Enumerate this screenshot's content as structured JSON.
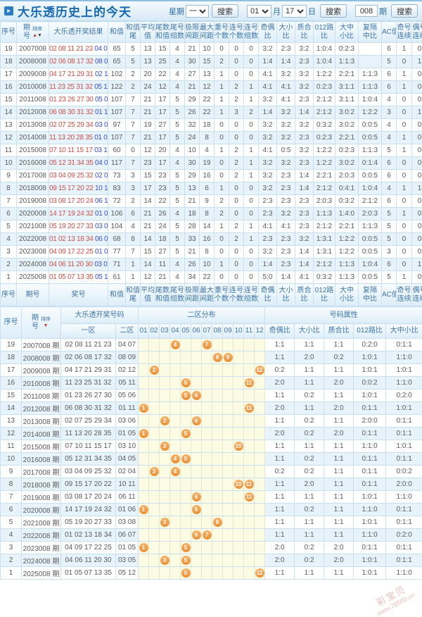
{
  "header": {
    "title_icon": "▸",
    "title": "大乐透历史上的今天",
    "week_label": "星期",
    "week_value": "一",
    "search_label": "搜索",
    "month_value": "01",
    "month_label": "月",
    "day_value": "17",
    "day_label": "日",
    "issue_value": "008",
    "issue_label": "期"
  },
  "sort": {
    "label": "排序",
    "up": "▲",
    "down": "▼"
  },
  "table1": {
    "columns": [
      [
        "序号"
      ],
      [
        "期",
        "号"
      ],
      [
        "大乐透开奖结果"
      ],
      [
        "和值"
      ],
      [
        "和值",
        "尾"
      ],
      [
        "平均",
        "值"
      ],
      [
        "尾数",
        "和值"
      ],
      [
        "尾号",
        "组数"
      ],
      [
        "极限",
        "间距"
      ],
      [
        "最大",
        "间距"
      ],
      [
        "重号",
        "个数"
      ],
      [
        "连号",
        "个数"
      ],
      [
        "连号",
        "组数"
      ],
      [
        "奇偶",
        "比"
      ],
      [
        "大小",
        "比"
      ],
      [
        "质合",
        "比"
      ],
      [
        "012路",
        "比"
      ],
      [
        "大中",
        "小比"
      ],
      [
        "复隔",
        "中比"
      ],
      [
        "AC值"
      ],
      [
        "奇号",
        "连续"
      ],
      [
        "偶号",
        "连续"
      ]
    ],
    "footer_columns": [
      [
        "序号"
      ],
      [
        "期号"
      ],
      [
        "奖号"
      ],
      [
        "和值"
      ],
      [
        "和值",
        "尾"
      ],
      [
        "平均",
        "值"
      ],
      [
        "尾数",
        "和值"
      ],
      [
        "尾号",
        "组数"
      ],
      [
        "极限",
        "间距"
      ],
      [
        "最大",
        "间距"
      ],
      [
        "重号",
        "个数"
      ],
      [
        "连号",
        "个数"
      ],
      [
        "连号",
        "组数"
      ],
      [
        "奇偶",
        "比"
      ],
      [
        "大小",
        "比"
      ],
      [
        "质合",
        "比"
      ],
      [
        "012路",
        "比"
      ],
      [
        "大中",
        "小比"
      ],
      [
        "复隔",
        "中比"
      ],
      [
        "AC值"
      ],
      [
        "奇号",
        "连续"
      ],
      [
        "偶号",
        "连续"
      ]
    ],
    "rows": [
      {
        "seq": "19",
        "issue": "2007008",
        "front": "02 08 11 21 23",
        "back": "04 07",
        "vals": [
          "65",
          "5",
          "13",
          "15",
          "4",
          "21",
          "10",
          "0",
          "0",
          "0",
          "3:2",
          "2:3",
          "3:2",
          "1:0:4",
          "0:2:3",
          "",
          "6",
          "1",
          "0"
        ]
      },
      {
        "seq": "18",
        "issue": "2008008",
        "front": "02 06 08 17 32",
        "back": "08 09",
        "vals": [
          "65",
          "5",
          "13",
          "25",
          "4",
          "30",
          "15",
          "2",
          "0",
          "0",
          "1:4",
          "1:4",
          "2:3",
          "1:0:4",
          "1:1:3",
          "",
          "5",
          "0",
          "1"
        ]
      },
      {
        "seq": "17",
        "issue": "2009008",
        "front": "04 17 21 29 31",
        "back": "02 12",
        "vals": [
          "102",
          "2",
          "20",
          "22",
          "4",
          "27",
          "13",
          "1",
          "0",
          "0",
          "4:1",
          "3:2",
          "3:2",
          "1:2:2",
          "2:2:1",
          "1:1:3",
          "6",
          "1",
          "0"
        ]
      },
      {
        "seq": "16",
        "issue": "2010008",
        "front": "11 23 25 31 32",
        "back": "05 11",
        "vals": [
          "122",
          "2",
          "24",
          "12",
          "4",
          "21",
          "12",
          "1",
          "2",
          "1",
          "4:1",
          "4:1",
          "3:2",
          "0:2:3",
          "3:1:1",
          "1:1:3",
          "6",
          "1",
          "0"
        ]
      },
      {
        "seq": "15",
        "issue": "2011008",
        "front": "01 23 26 27 30",
        "back": "05 06",
        "vals": [
          "107",
          "7",
          "21",
          "17",
          "5",
          "29",
          "22",
          "1",
          "2",
          "1",
          "3:2",
          "4:1",
          "2:3",
          "2:1:2",
          "3:1:1",
          "1:0:4",
          "4",
          "0",
          "0"
        ]
      },
      {
        "seq": "14",
        "issue": "2012008",
        "front": "06 08 30 31 32",
        "back": "01 11",
        "vals": [
          "107",
          "7",
          "21",
          "17",
          "5",
          "26",
          "22",
          "1",
          "3",
          "2",
          "1:4",
          "3:2",
          "1:4",
          "2:1:2",
          "3:0:2",
          "1:2:2",
          "3",
          "0",
          "1"
        ]
      },
      {
        "seq": "13",
        "issue": "2013008",
        "front": "02 07 25 29 34",
        "back": "03 06",
        "vals": [
          "97",
          "7",
          "19",
          "27",
          "5",
          "32",
          "18",
          "0",
          "0",
          "0",
          "3:2",
          "3:2",
          "3:2",
          "0:3:2",
          "3:0:2",
          "0:0:5",
          "4",
          "0",
          "0"
        ]
      },
      {
        "seq": "12",
        "issue": "2014008",
        "front": "11 13 20 28 35",
        "back": "01 05",
        "vals": [
          "107",
          "7",
          "21",
          "17",
          "5",
          "24",
          "8",
          "0",
          "0",
          "0",
          "3:2",
          "3:2",
          "2:3",
          "0:2:3",
          "2:2:1",
          "0:0:5",
          "4",
          "1",
          "0"
        ]
      },
      {
        "seq": "11",
        "issue": "2015008",
        "front": "07 10 11 15 17",
        "back": "03 10",
        "vals": [
          "60",
          "0",
          "12",
          "20",
          "4",
          "10",
          "4",
          "1",
          "2",
          "1",
          "4:1",
          "0:5",
          "3:2",
          "1:2:2",
          "0:2:3",
          "1:1:3",
          "5",
          "1",
          "0"
        ]
      },
      {
        "seq": "10",
        "issue": "2016008",
        "front": "05 12 31 34 35",
        "back": "04 05",
        "vals": [
          "117",
          "7",
          "23",
          "17",
          "4",
          "30",
          "19",
          "0",
          "2",
          "1",
          "3:2",
          "3:2",
          "2:3",
          "1:2:2",
          "3:0:2",
          "0:1:4",
          "6",
          "0",
          "0"
        ]
      },
      {
        "seq": "9",
        "issue": "2017008",
        "front": "03 04 09 25 32",
        "back": "02 04",
        "vals": [
          "73",
          "3",
          "15",
          "23",
          "5",
          "29",
          "16",
          "0",
          "2",
          "1",
          "3:2",
          "2:3",
          "1:4",
          "2:2:1",
          "2:0:3",
          "0:0:5",
          "6",
          "0",
          "0"
        ]
      },
      {
        "seq": "8",
        "issue": "2018008",
        "front": "09 15 17 20 22",
        "back": "10 11",
        "vals": [
          "83",
          "3",
          "17",
          "23",
          "5",
          "13",
          "6",
          "1",
          "0",
          "0",
          "3:2",
          "2:3",
          "1:4",
          "2:1:2",
          "0:4:1",
          "1:0:4",
          "4",
          "1",
          "1"
        ]
      },
      {
        "seq": "7",
        "issue": "2019008",
        "front": "03 08 17 20 24",
        "back": "06 11",
        "vals": [
          "72",
          "2",
          "14",
          "22",
          "5",
          "21",
          "9",
          "2",
          "0",
          "0",
          "2:3",
          "2:3",
          "2:3",
          "2:0:3",
          "0:3:2",
          "2:1:2",
          "6",
          "0",
          "0"
        ]
      },
      {
        "seq": "6",
        "issue": "2020008",
        "front": "14 17 19 24 32",
        "back": "01 06",
        "vals": [
          "106",
          "6",
          "21",
          "26",
          "4",
          "18",
          "8",
          "2",
          "0",
          "0",
          "2:3",
          "3:2",
          "2:3",
          "1:1:3",
          "1:4:0",
          "2:0:3",
          "5",
          "1",
          "0"
        ]
      },
      {
        "seq": "5",
        "issue": "2021008",
        "front": "05 19 20 27 33",
        "back": "03 08",
        "vals": [
          "104",
          "4",
          "21",
          "24",
          "5",
          "28",
          "14",
          "1",
          "2",
          "1",
          "4:1",
          "4:1",
          "2:3",
          "2:1:2",
          "2:2:1",
          "1:1:3",
          "5",
          "0",
          "0"
        ]
      },
      {
        "seq": "4",
        "issue": "2022008",
        "front": "01 02 13 18 34",
        "back": "06 07",
        "vals": [
          "68",
          "8",
          "14",
          "18",
          "5",
          "33",
          "16",
          "0",
          "2",
          "1",
          "2:3",
          "2:3",
          "3:2",
          "1:3:1",
          "1:2:2",
          "0:0:5",
          "5",
          "0",
          "0"
        ]
      },
      {
        "seq": "3",
        "issue": "2023008",
        "front": "04 09 17 22 25",
        "back": "01 05",
        "vals": [
          "77",
          "7",
          "15",
          "27",
          "5",
          "21",
          "8",
          "0",
          "0",
          "0",
          "3:2",
          "2:3",
          "1:4",
          "1:3:1",
          "1:2:2",
          "0:0:5",
          "3",
          "0",
          "0"
        ]
      },
      {
        "seq": "2",
        "issue": "2024008",
        "front": "04 06 11 20 30",
        "back": "03 05",
        "vals": [
          "71",
          "1",
          "14",
          "11",
          "4",
          "26",
          "10",
          "1",
          "0",
          "0",
          "1:4",
          "2:3",
          "1:4",
          "2:1:2",
          "1:1:3",
          "1:0:4",
          "6",
          "0",
          "1"
        ]
      },
      {
        "seq": "1",
        "issue": "2025008",
        "front": "01 05 07 13 35",
        "back": "05 12",
        "vals": [
          "61",
          "1",
          "12",
          "21",
          "4",
          "34",
          "22",
          "0",
          "0",
          "0",
          "5:0",
          "1:4",
          "4:1",
          "0:3:2",
          "1:1:3",
          "0:0:5",
          "5",
          "1",
          "0"
        ]
      }
    ]
  },
  "table2": {
    "seq_label": "序号",
    "issue_lines": [
      "期",
      "号"
    ],
    "issue_suffix": "期",
    "result_label": "大乐透开奖号码",
    "zone1_label": "一区",
    "zone2_label": "二区",
    "dist_label": "二区分布",
    "attrs_label": "号码属性",
    "dist_columns": [
      "01",
      "02",
      "03",
      "04",
      "05",
      "06",
      "07",
      "08",
      "09",
      "10",
      "11",
      "12"
    ],
    "attr_columns": [
      "奇偶比",
      "大小比",
      "质合比",
      "012路比",
      "大中小比"
    ],
    "rows": [
      {
        "seq": "19",
        "issue": "2007008",
        "front": "02 08 11 21 23",
        "back": "04 07",
        "balls": [
          4,
          7
        ],
        "attrs": [
          "1:1",
          "1:1",
          "1:1",
          "0:2:0",
          "0:1:1"
        ]
      },
      {
        "seq": "18",
        "issue": "2008008",
        "front": "02 06 08 17 32",
        "back": "08 09",
        "balls": [
          8,
          9
        ],
        "attrs": [
          "1:1",
          "2:0",
          "0:2",
          "1:0:1",
          "1:1:0"
        ]
      },
      {
        "seq": "17",
        "issue": "2009008",
        "front": "04 17 21 29 31",
        "back": "02 12",
        "balls": [
          2,
          12
        ],
        "attrs": [
          "0:2",
          "1:1",
          "1:1",
          "1:0:1",
          "1:0:1"
        ]
      },
      {
        "seq": "16",
        "issue": "2010008",
        "front": "11 23 25 31 32",
        "back": "05 11",
        "balls": [
          5,
          11
        ],
        "attrs": [
          "2:0",
          "1:1",
          "2:0",
          "0:0:2",
          "1:1:0"
        ]
      },
      {
        "seq": "15",
        "issue": "2011008",
        "front": "01 23 26 27 30",
        "back": "05 06",
        "balls": [
          5,
          6
        ],
        "attrs": [
          "1:1",
          "0:2",
          "1:1",
          "1:0:1",
          "0:2:0"
        ]
      },
      {
        "seq": "14",
        "issue": "2012008",
        "front": "06 08 30 31 32",
        "back": "01 11",
        "balls": [
          1,
          11
        ],
        "attrs": [
          "2:0",
          "1:1",
          "2:0",
          "0:1:1",
          "1:0:1"
        ]
      },
      {
        "seq": "13",
        "issue": "2013008",
        "front": "02 07 25 29 34",
        "back": "03 06",
        "balls": [
          3,
          6
        ],
        "attrs": [
          "1:1",
          "0:2",
          "1:1",
          "2:0:0",
          "0:1:1"
        ]
      },
      {
        "seq": "12",
        "issue": "2014008",
        "front": "11 13 20 28 35",
        "back": "01 05",
        "balls": [
          1,
          5
        ],
        "attrs": [
          "2:0",
          "0:2",
          "2:0",
          "0:1:1",
          "0:1:1"
        ]
      },
      {
        "seq": "11",
        "issue": "2015008",
        "front": "07 10 11 15 17",
        "back": "03 10",
        "balls": [
          3,
          10
        ],
        "attrs": [
          "1:1",
          "1:1",
          "1:1",
          "1:1:0",
          "1:0:1"
        ]
      },
      {
        "seq": "10",
        "issue": "2016008",
        "front": "05 12 31 34 35",
        "back": "04 05",
        "balls": [
          4,
          5
        ],
        "attrs": [
          "1:1",
          "0:2",
          "1:1",
          "0:1:1",
          "0:1:1"
        ]
      },
      {
        "seq": "9",
        "issue": "2017008",
        "front": "03 04 09 25 32",
        "back": "02 04",
        "balls": [
          2,
          4
        ],
        "attrs": [
          "0:2",
          "0:2",
          "1:1",
          "0:1:1",
          "0:0:2"
        ]
      },
      {
        "seq": "8",
        "issue": "2018008",
        "front": "09 15 17 20 22",
        "back": "10 11",
        "balls": [
          10,
          11
        ],
        "attrs": [
          "1:1",
          "2:0",
          "1:1",
          "0:1:1",
          "2:0:0"
        ]
      },
      {
        "seq": "7",
        "issue": "2019008",
        "front": "03 08 17 20 24",
        "back": "06 11",
        "balls": [
          6,
          11
        ],
        "attrs": [
          "1:1",
          "1:1",
          "1:1",
          "1:0:1",
          "1:1:0"
        ]
      },
      {
        "seq": "6",
        "issue": "2020008",
        "front": "14 17 19 24 32",
        "back": "01 06",
        "balls": [
          1,
          6
        ],
        "attrs": [
          "1:1",
          "0:2",
          "1:1",
          "1:1:0",
          "0:1:1"
        ]
      },
      {
        "seq": "5",
        "issue": "2021008",
        "front": "05 19 20 27 33",
        "back": "03 08",
        "balls": [
          3,
          8
        ],
        "attrs": [
          "1:1",
          "1:1",
          "1:1",
          "1:0:1",
          "0:1:1"
        ]
      },
      {
        "seq": "4",
        "issue": "2022008",
        "front": "01 02 13 18 34",
        "back": "06 07",
        "balls": [
          6,
          7
        ],
        "attrs": [
          "1:1",
          "1:1",
          "1:1",
          "1:1:0",
          "0:2:0"
        ]
      },
      {
        "seq": "3",
        "issue": "2023008",
        "front": "04 09 17 22 25",
        "back": "01 05",
        "balls": [
          1,
          5
        ],
        "attrs": [
          "2:0",
          "0:2",
          "2:0",
          "0:1:1",
          "0:1:1"
        ]
      },
      {
        "seq": "2",
        "issue": "2024008",
        "front": "04 06 11 20 30",
        "back": "03 05",
        "balls": [
          3,
          5
        ],
        "attrs": [
          "2:0",
          "0:2",
          "2:0",
          "1:0:1",
          "0:1:1"
        ]
      },
      {
        "seq": "1",
        "issue": "2025008",
        "front": "01 05 07 13 35",
        "back": "05 12",
        "balls": [
          5,
          12
        ],
        "attrs": [
          "1:1",
          "1:1",
          "1:1",
          "1:0:1",
          "1:1:0"
        ]
      }
    ]
  },
  "watermark": {
    "brand": "彩宝贝",
    "url": "www.78500.cn"
  }
}
